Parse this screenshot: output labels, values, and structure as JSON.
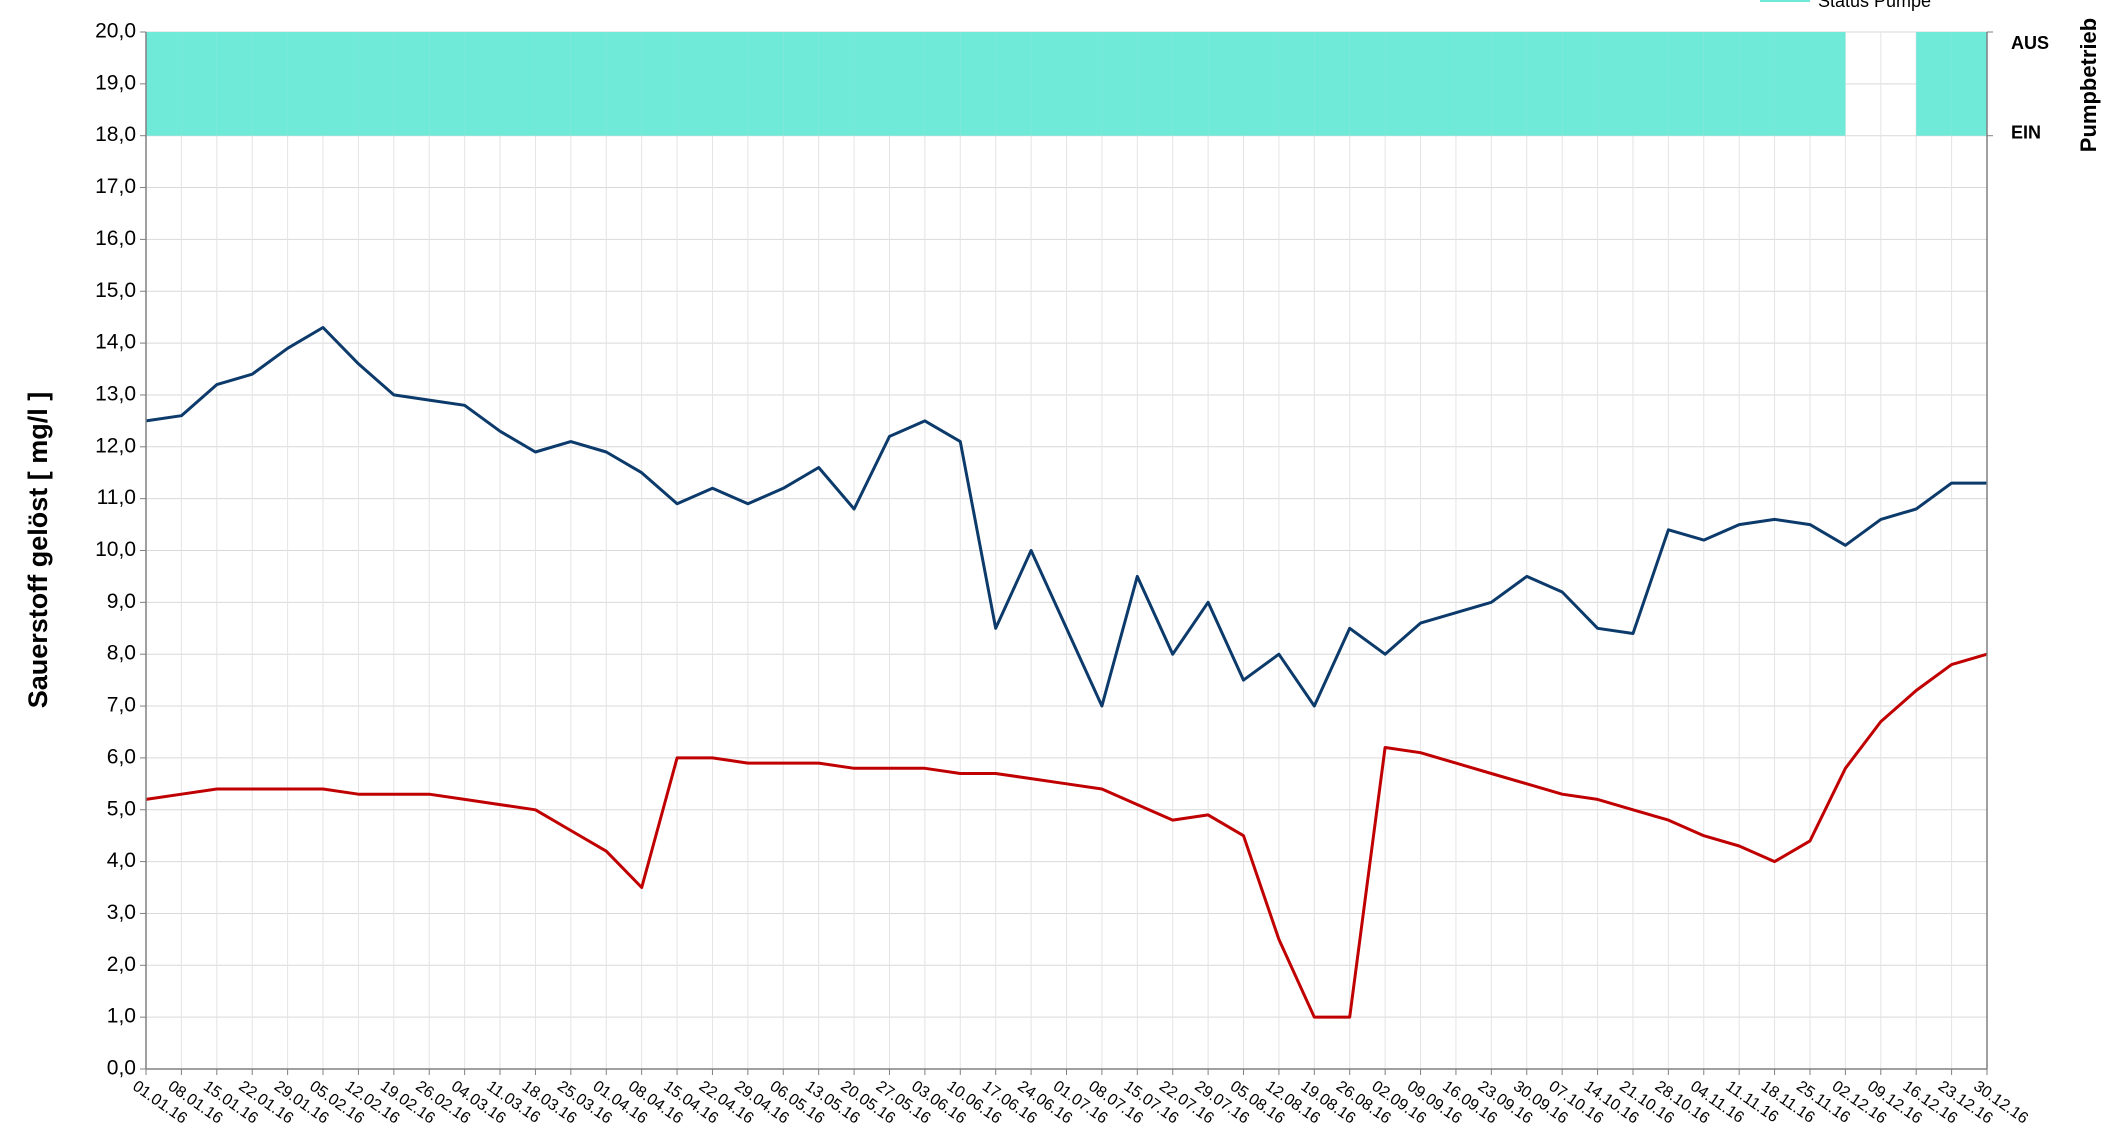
{
  "chart_data": {
    "type": "line",
    "y_label": "Sauerstoff  gelöst  [ mg/l ]",
    "y2_label": "Pumpbetrieb",
    "categories": [
      "01.01.16",
      "08.01.16",
      "15.01.16",
      "22.01.16",
      "29.01.16",
      "05.02.16",
      "12.02.16",
      "19.02.16",
      "26.02.16",
      "04.03.16",
      "11.03.16",
      "18.03.16",
      "25.03.16",
      "01.04.16",
      "08.04.16",
      "15.04.16",
      "22.04.16",
      "29.04.16",
      "06.05.16",
      "13.05.16",
      "20.05.16",
      "27.05.16",
      "03.06.16",
      "10.06.16",
      "17.06.16",
      "24.06.16",
      "01.07.16",
      "08.07.16",
      "15.07.16",
      "22.07.16",
      "29.07.16",
      "05.08.16",
      "12.08.16",
      "19.08.16",
      "26.08.16",
      "02.09.16",
      "09.09.16",
      "16.09.16",
      "23.09.16",
      "30.09.16",
      "07.10.16",
      "14.10.16",
      "21.10.16",
      "28.10.16",
      "04.11.16",
      "11.11.16",
      "18.11.16",
      "25.11.16",
      "02.12.16",
      "09.12.16",
      "16.12.16",
      "23.12.16",
      "30.12.16"
    ],
    "series": [
      {
        "color": "#0b3a6b",
        "values": [
          12.5,
          12.6,
          13.2,
          13.4,
          13.9,
          14.3,
          13.6,
          13.0,
          12.9,
          12.8,
          12.3,
          11.9,
          12.1,
          11.9,
          11.5,
          10.9,
          11.2,
          10.9,
          11.2,
          11.6,
          10.8,
          12.2,
          12.5,
          12.1,
          8.5,
          10.0,
          8.5,
          7.0,
          9.5,
          8.0,
          9.0,
          7.5,
          8.0,
          7.0,
          8.5,
          8.0,
          8.6,
          8.8,
          9.0,
          9.5,
          9.2,
          8.5,
          8.4,
          10.4,
          10.2,
          10.5,
          10.6,
          10.5,
          10.1,
          10.6,
          10.8,
          11.3,
          11.3
        ]
      },
      {
        "color": "#c00000",
        "values": [
          5.2,
          5.3,
          5.4,
          5.4,
          5.4,
          5.4,
          5.3,
          5.3,
          5.3,
          5.2,
          5.1,
          5.0,
          4.6,
          4.2,
          3.5,
          6.0,
          6.0,
          5.9,
          5.9,
          5.9,
          5.8,
          5.8,
          5.8,
          5.7,
          5.7,
          5.6,
          5.5,
          5.4,
          5.1,
          4.8,
          4.9,
          4.5,
          2.5,
          1.0,
          1.0,
          6.2,
          6.1,
          5.9,
          5.7,
          5.5,
          5.3,
          5.2,
          5.0,
          4.8,
          4.5,
          4.3,
          4.0,
          4.4,
          5.8,
          6.7,
          7.3,
          7.8,
          8.0
        ]
      },
      {
        "name": "Status Pumpe",
        "color": "#6fe9d8",
        "axis": "y2",
        "type": "area",
        "values": [
          1,
          1,
          1,
          1,
          1,
          1,
          1,
          1,
          1,
          1,
          1,
          1,
          1,
          1,
          1,
          1,
          1,
          1,
          1,
          1,
          1,
          1,
          1,
          1,
          1,
          1,
          1,
          1,
          1,
          1,
          1,
          1,
          1,
          1,
          1,
          1,
          1,
          1,
          1,
          1,
          1,
          1,
          1,
          1,
          1,
          1,
          1,
          1,
          0,
          0,
          1,
          1,
          1
        ]
      }
    ],
    "ylim": [
      0,
      20
    ],
    "yticks": [
      {
        "value": 0,
        "label": "0,0"
      },
      {
        "value": 1,
        "label": "1,0"
      },
      {
        "value": 2,
        "label": "2,0"
      },
      {
        "value": 3,
        "label": "3,0"
      },
      {
        "value": 4,
        "label": "4,0"
      },
      {
        "value": 5,
        "label": "5,0"
      },
      {
        "value": 6,
        "label": "6,0"
      },
      {
        "value": 7,
        "label": "7,0"
      },
      {
        "value": 8,
        "label": "8,0"
      },
      {
        "value": 9,
        "label": "9,0"
      },
      {
        "value": 10,
        "label": "10,0"
      },
      {
        "value": 11,
        "label": "11,0"
      },
      {
        "value": 12,
        "label": "12,0"
      },
      {
        "value": 13,
        "label": "13,0"
      },
      {
        "value": 14,
        "label": "14,0"
      },
      {
        "value": 15,
        "label": "15,0"
      },
      {
        "value": 16,
        "label": "16,0"
      },
      {
        "value": 17,
        "label": "17,0"
      },
      {
        "value": 18,
        "label": "18,0"
      },
      {
        "value": 19,
        "label": "19,0"
      },
      {
        "value": 20,
        "label": "20,0"
      }
    ],
    "y2lim": [
      -9,
      1
    ],
    "y2ticks": [
      {
        "value": 1,
        "label": "AUS"
      },
      {
        "value": 0,
        "label": "EIN"
      }
    ],
    "grid": true,
    "legend": "top-right"
  }
}
